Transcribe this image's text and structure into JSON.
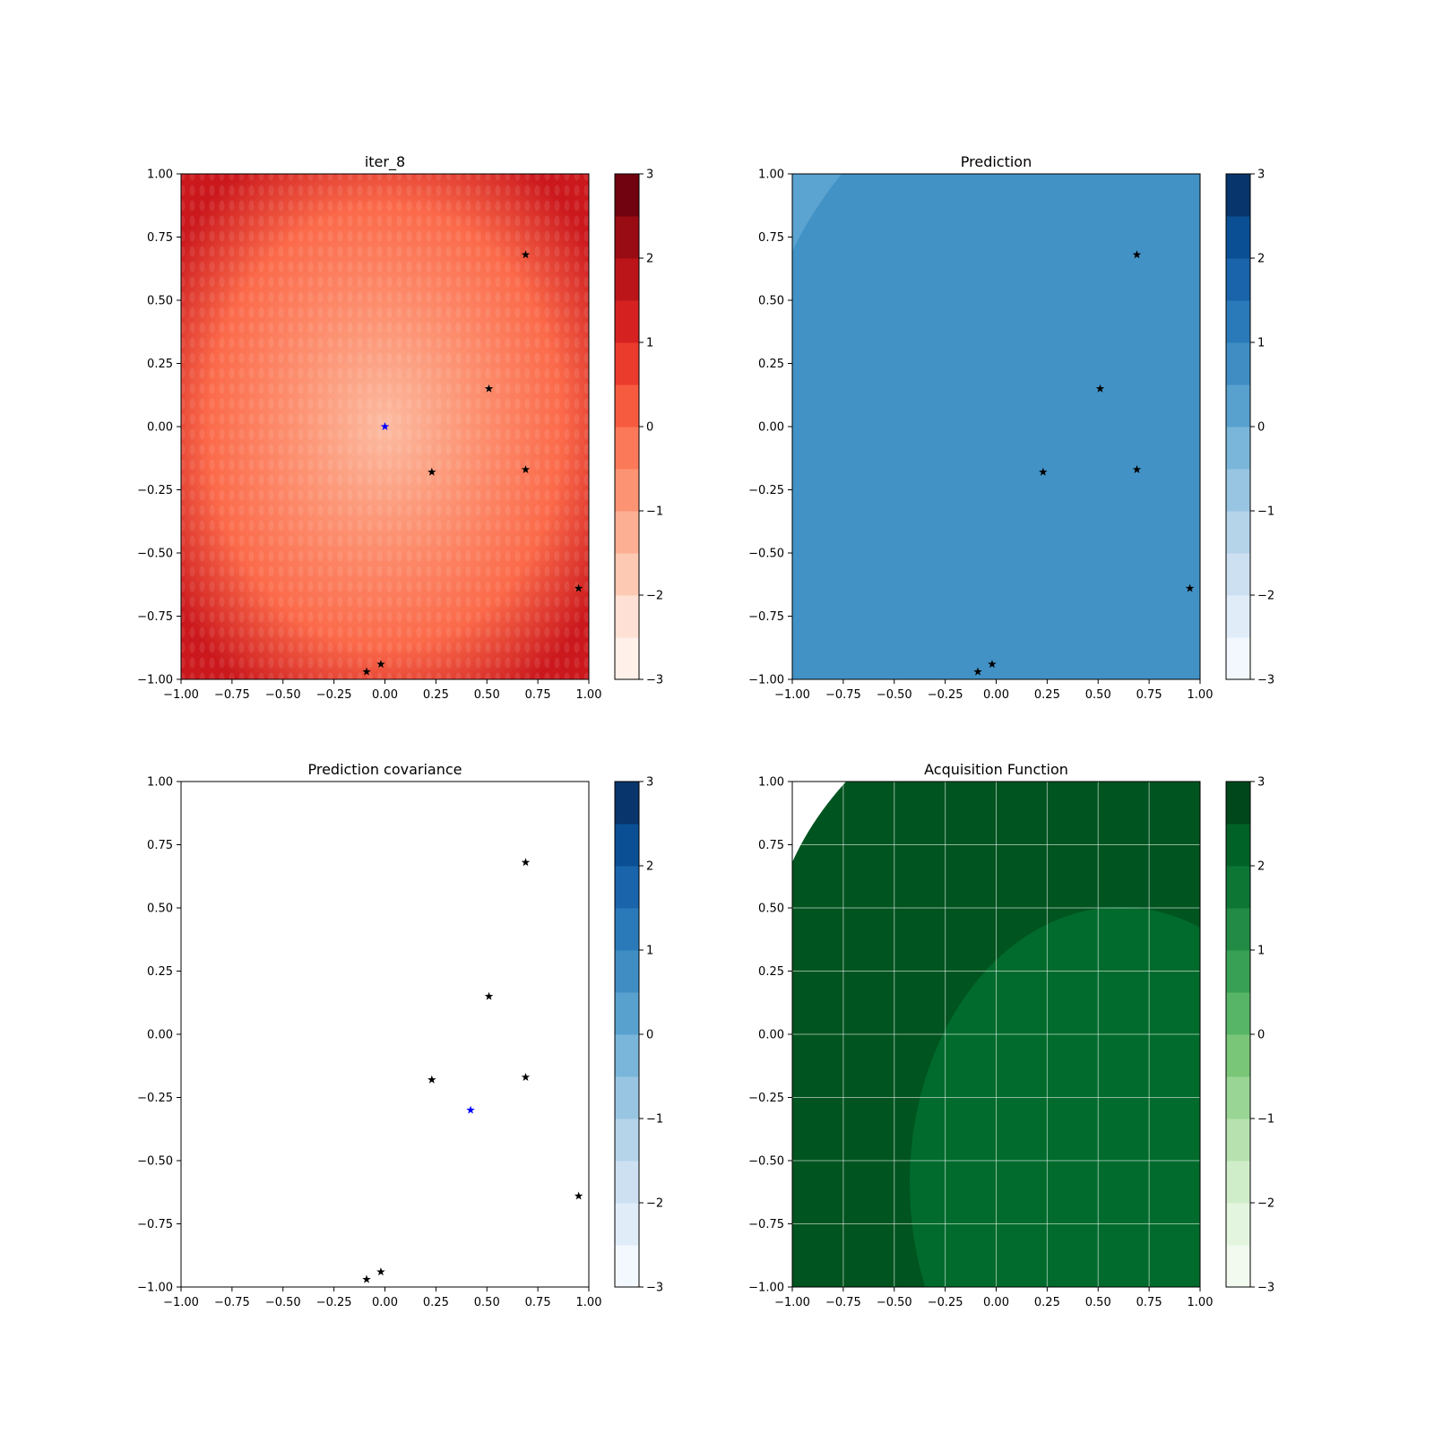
{
  "chart_data": [
    {
      "type": "heatmap",
      "title": "iter_8",
      "xlim": [
        -1,
        1
      ],
      "ylim": [
        -1,
        1
      ],
      "xticks": [
        "−1.00",
        "−0.75",
        "−0.50",
        "−0.25",
        "0.00",
        "0.25",
        "0.50",
        "0.75",
        "1.00"
      ],
      "yticks": [
        "−1.00",
        "−0.75",
        "−0.50",
        "−0.25",
        "0.00",
        "0.25",
        "0.50",
        "0.75",
        "1.00"
      ],
      "colormap": "Reds",
      "colorbar_range": [
        -3,
        3
      ],
      "colorbar_ticks": [
        "−3",
        "−2",
        "−1",
        "0",
        "1",
        "2",
        "3"
      ],
      "grid": false,
      "points": [
        {
          "x": 0.69,
          "y": 0.68
        },
        {
          "x": 0.51,
          "y": 0.15
        },
        {
          "x": 0.23,
          "y": -0.18
        },
        {
          "x": 0.69,
          "y": -0.17
        },
        {
          "x": 0.95,
          "y": -0.64
        },
        {
          "x": -0.09,
          "y": -0.97
        },
        {
          "x": -0.02,
          "y": -0.94
        }
      ],
      "highlight_point": {
        "x": 0.0,
        "y": 0.0,
        "color": "#0000ff"
      }
    },
    {
      "type": "heatmap",
      "title": "Prediction",
      "xlim": [
        -1,
        1
      ],
      "ylim": [
        -1,
        1
      ],
      "xticks": [
        "−1.00",
        "−0.75",
        "−0.50",
        "−0.25",
        "0.00",
        "0.25",
        "0.50",
        "0.75",
        "1.00"
      ],
      "yticks": [
        "−1.00",
        "−0.75",
        "−0.50",
        "−0.25",
        "0.00",
        "0.25",
        "0.50",
        "0.75",
        "1.00"
      ],
      "colormap": "Blues",
      "colorbar_range": [
        -3,
        3
      ],
      "colorbar_ticks": [
        "−3",
        "−2",
        "−1",
        "0",
        "1",
        "2",
        "3"
      ],
      "grid": false,
      "points": [
        {
          "x": 0.69,
          "y": 0.68
        },
        {
          "x": 0.51,
          "y": 0.15
        },
        {
          "x": 0.23,
          "y": -0.18
        },
        {
          "x": 0.69,
          "y": -0.17
        },
        {
          "x": 0.95,
          "y": -0.64
        },
        {
          "x": -0.09,
          "y": -0.97
        },
        {
          "x": -0.02,
          "y": -0.94
        }
      ],
      "regions": [
        {
          "level": 0.75,
          "color": "#4292c6"
        },
        {
          "level": 0.25,
          "color": "#5ba3d0",
          "corner": "top-left"
        }
      ]
    },
    {
      "type": "heatmap",
      "title": "Prediction covariance",
      "xlim": [
        -1,
        1
      ],
      "ylim": [
        -1,
        1
      ],
      "xticks": [
        "−1.00",
        "−0.75",
        "−0.50",
        "−0.25",
        "0.00",
        "0.25",
        "0.50",
        "0.75",
        "1.00"
      ],
      "yticks": [
        "−1.00",
        "−0.75",
        "−0.50",
        "−0.25",
        "0.00",
        "0.25",
        "0.50",
        "0.75",
        "1.00"
      ],
      "colormap": "Blues",
      "colorbar_range": [
        -3,
        3
      ],
      "colorbar_ticks": [
        "−3",
        "−2",
        "−1",
        "0",
        "1",
        "2",
        "3"
      ],
      "grid": false,
      "points": [
        {
          "x": 0.69,
          "y": 0.68
        },
        {
          "x": 0.51,
          "y": 0.15
        },
        {
          "x": 0.23,
          "y": -0.18
        },
        {
          "x": 0.69,
          "y": -0.17
        },
        {
          "x": 0.95,
          "y": -0.64
        },
        {
          "x": -0.09,
          "y": -0.97
        },
        {
          "x": -0.02,
          "y": -0.94
        }
      ],
      "highlight_point": {
        "x": 0.42,
        "y": -0.3,
        "color": "#0000ff"
      }
    },
    {
      "type": "heatmap",
      "title": "Acquisition Function",
      "xlim": [
        -1,
        1
      ],
      "ylim": [
        -1,
        1
      ],
      "xticks": [
        "−1.00",
        "−0.75",
        "−0.50",
        "−0.25",
        "0.00",
        "0.25",
        "0.50",
        "0.75",
        "1.00"
      ],
      "yticks": [
        "−1.00",
        "−0.75",
        "−0.50",
        "−0.25",
        "0.00",
        "0.25",
        "0.50",
        "0.75",
        "1.00"
      ],
      "colormap": "Greens",
      "colorbar_range": [
        -3,
        3
      ],
      "colorbar_ticks": [
        "−3",
        "−2",
        "−1",
        "0",
        "1",
        "2",
        "3"
      ],
      "grid": true,
      "regions": [
        {
          "level": 2.75,
          "color": "#00541f"
        },
        {
          "level": 2.25,
          "color": "#006b2c",
          "center": {
            "x": 0.6,
            "y": -0.6
          }
        }
      ]
    }
  ]
}
